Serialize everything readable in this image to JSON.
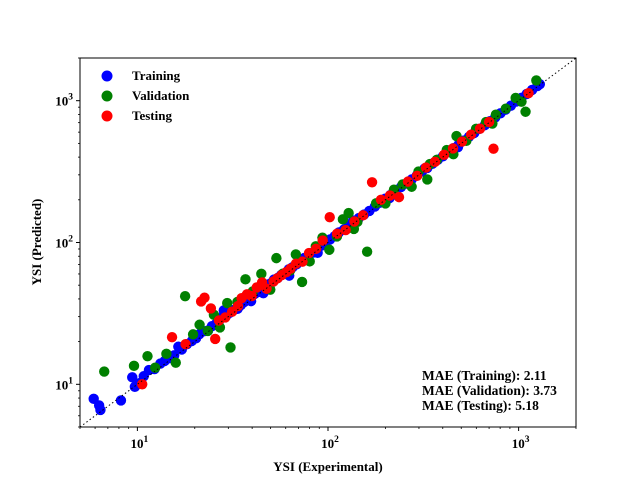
{
  "chart_data": {
    "type": "scatter",
    "xlabel": "YSI (Experimental)",
    "ylabel": "YSI (Predicted)",
    "xscale": "log",
    "yscale": "log",
    "xlim": [
      5,
      2000
    ],
    "ylim": [
      5,
      2000
    ],
    "x_ticks": [
      {
        "value": 10,
        "base": "10",
        "exp": "1"
      },
      {
        "value": 100,
        "base": "10",
        "exp": "2"
      },
      {
        "value": 1000,
        "base": "10",
        "exp": "3"
      }
    ],
    "y_ticks": [
      {
        "value": 10,
        "base": "10",
        "exp": "1"
      },
      {
        "value": 100,
        "base": "10",
        "exp": "2"
      },
      {
        "value": 1000,
        "base": "10",
        "exp": "3"
      }
    ],
    "reference_line": "y = x (dotted)",
    "grid": false,
    "legend_position": "upper-left",
    "annotations": [
      "MAE (Training): 2.11",
      "MAE (Validation): 3.73",
      "MAE (Testing): 5.18"
    ],
    "series": [
      {
        "name": "Training",
        "color": "#0000ff",
        "points": [
          [
            5.9,
            7.9
          ],
          [
            6.3,
            7.1
          ],
          [
            6.4,
            6.6
          ],
          [
            8.2,
            7.7
          ],
          [
            9.4,
            11.2
          ],
          [
            9.7,
            9.6
          ],
          [
            10.3,
            10.2
          ],
          [
            10.8,
            11.4
          ],
          [
            11.5,
            12.6
          ],
          [
            12.3,
            12.8
          ],
          [
            13.2,
            14.0
          ],
          [
            13.9,
            14.6
          ],
          [
            14.8,
            15.3
          ],
          [
            15.6,
            16.0
          ],
          [
            16.4,
            18.4
          ],
          [
            17.1,
            17.6
          ],
          [
            18.2,
            19.2
          ],
          [
            19.3,
            20.2
          ],
          [
            20.3,
            21.1
          ],
          [
            21.1,
            22.5
          ],
          [
            22.4,
            23.7
          ],
          [
            23.5,
            24.0
          ],
          [
            24.6,
            25.7
          ],
          [
            25.8,
            26.6
          ],
          [
            26.7,
            27.6
          ],
          [
            28.1,
            29.9
          ],
          [
            29.3,
            30.6
          ],
          [
            30.5,
            31.9
          ],
          [
            32.2,
            33.5
          ],
          [
            33.6,
            34.1
          ],
          [
            34.9,
            36.2
          ],
          [
            36.3,
            38.0
          ],
          [
            37.8,
            39.2
          ],
          [
            39.5,
            38.6
          ],
          [
            41.2,
            43.4
          ],
          [
            42.8,
            44.7
          ],
          [
            44.4,
            46.1
          ],
          [
            46.2,
            48.3
          ],
          [
            48.1,
            50.5
          ],
          [
            50.2,
            51.6
          ],
          [
            52.1,
            54.8
          ],
          [
            54.5,
            56.2
          ],
          [
            56.8,
            58.9
          ],
          [
            59.6,
            60.4
          ],
          [
            62.3,
            64.7
          ],
          [
            65.1,
            66.8
          ],
          [
            68.4,
            70.1
          ],
          [
            71.9,
            74.6
          ],
          [
            75.2,
            77.8
          ],
          [
            79.1,
            80.9
          ],
          [
            83.5,
            85.0
          ],
          [
            87.6,
            90.4
          ],
          [
            92.4,
            95.1
          ],
          [
            97.3,
            99.6
          ],
          [
            102.5,
            105.1
          ],
          [
            108.3,
            110.6
          ],
          [
            114.1,
            117.8
          ],
          [
            121.2,
            123.4
          ],
          [
            128.6,
            131.9
          ],
          [
            136.3,
            139.5
          ],
          [
            145.2,
            148.8
          ],
          [
            154.6,
            157.3
          ],
          [
            164.8,
            166.9
          ],
          [
            176.1,
            179.2
          ],
          [
            187.3,
            190.8
          ],
          [
            199.5,
            203.6
          ],
          [
            212.4,
            215.9
          ],
          [
            226.7,
            229.4
          ],
          [
            241.5,
            245.8
          ],
          [
            257.8,
            260.2
          ],
          [
            274.6,
            278.1
          ],
          [
            292.4,
            296.7
          ],
          [
            311.2,
            316.5
          ],
          [
            331.8,
            335.4
          ],
          [
            353.4,
            359.2
          ],
          [
            376.5,
            382.6
          ],
          [
            400.8,
            405.3
          ],
          [
            426.9,
            433.5
          ],
          [
            454.6,
            462.8
          ],
          [
            484.2,
            489.1
          ],
          [
            515.7,
            523.6
          ],
          [
            549.3,
            556.4
          ],
          [
            585.1,
            591.8
          ],
          [
            623.4,
            632.7
          ],
          [
            664.1,
            671.2
          ],
          [
            707.5,
            716.3
          ],
          [
            753.6,
            762.1
          ],
          [
            802.8,
            814.6
          ],
          [
            855.2,
            864.9
          ],
          [
            911.3,
            922.5
          ],
          [
            970.4,
            985.1
          ],
          [
            1035.8,
            1048.6
          ],
          [
            1103.2,
            1116.4
          ],
          [
            1176.4,
            1190.5
          ],
          [
            1254.3,
            1268.2
          ],
          [
            1292.1,
            1305.7
          ],
          [
            28.4,
            33.2
          ],
          [
            45.8,
            43.9
          ],
          [
            62.6,
            58.4
          ],
          [
            88.2,
            84.6
          ],
          [
            135.4,
            142.7
          ],
          [
            210.3,
            205.8
          ],
          [
            320.6,
            331.9
          ],
          [
            480.4,
            470.2
          ],
          [
            690.7,
            706.5
          ]
        ]
      },
      {
        "name": "Validation",
        "color": "#008000",
        "points": [
          [
            6.7,
            12.3
          ],
          [
            9.6,
            13.5
          ],
          [
            11.3,
            15.8
          ],
          [
            12.4,
            13.1
          ],
          [
            14.2,
            16.4
          ],
          [
            15.9,
            14.2
          ],
          [
            17.8,
            41.8
          ],
          [
            19.6,
            22.5
          ],
          [
            21.2,
            26.3
          ],
          [
            23.4,
            23.8
          ],
          [
            25.2,
            30.9
          ],
          [
            27.1,
            25.2
          ],
          [
            29.6,
            37.4
          ],
          [
            30.8,
            18.2
          ],
          [
            33.5,
            38.1
          ],
          [
            36.9,
            55.0
          ],
          [
            40.3,
            45.2
          ],
          [
            44.7,
            60.1
          ],
          [
            49.8,
            46.5
          ],
          [
            53.6,
            77.6
          ],
          [
            57.9,
            60.2
          ],
          [
            63.2,
            63.4
          ],
          [
            67.8,
            82.4
          ],
          [
            73.1,
            52.7
          ],
          [
            80.2,
            73.6
          ],
          [
            86.3,
            94.0
          ],
          [
            93.5,
            108.2
          ],
          [
            101.6,
            88.9
          ],
          [
            111.4,
            110.3
          ],
          [
            119.7,
            145.6
          ],
          [
            128.3,
            161.2
          ],
          [
            142.6,
            139.8
          ],
          [
            160.4,
            86.2
          ],
          [
            178.9,
            188.8
          ],
          [
            200.1,
            188.6
          ],
          [
            221.8,
            235.9
          ],
          [
            246.3,
            256.6
          ],
          [
            274.7,
            247.2
          ],
          [
            298.3,
            316.6
          ],
          [
            331.8,
            278.5
          ],
          [
            372.4,
            382.8
          ],
          [
            419.6,
            448.3
          ],
          [
            472.1,
            563.5
          ],
          [
            531.5,
            521.2
          ],
          [
            598.4,
            633.0
          ],
          [
            674.6,
            706.2
          ],
          [
            759.8,
            796.2
          ],
          [
            856.6,
            878.4
          ],
          [
            964.9,
            1045.1
          ],
          [
            1087.3,
            835.7
          ],
          [
            1238.6,
            1390.0
          ],
          [
            1035.5,
            984.6
          ],
          [
            728.4,
            690.1
          ],
          [
            454.7,
            419.3
          ],
          [
            342.4,
            357.6
          ],
          [
            136.7,
            124.7
          ]
        ]
      },
      {
        "name": "Testing",
        "color": "#ff0000",
        "points": [
          [
            10.6,
            10.0
          ],
          [
            15.2,
            21.5
          ],
          [
            17.9,
            19.2
          ],
          [
            21.6,
            38.4
          ],
          [
            22.5,
            40.8
          ],
          [
            24.3,
            34.3
          ],
          [
            25.6,
            20.9
          ],
          [
            26.8,
            28.2
          ],
          [
            28.9,
            29.6
          ],
          [
            31.4,
            32.5
          ],
          [
            33.7,
            35.6
          ],
          [
            35.2,
            40.5
          ],
          [
            37.6,
            43.1
          ],
          [
            39.8,
            41.9
          ],
          [
            42.3,
            48.2
          ],
          [
            45.1,
            52.3
          ],
          [
            47.6,
            47.2
          ],
          [
            51.8,
            53.1
          ],
          [
            54.3,
            55.9
          ],
          [
            57.2,
            58.9
          ],
          [
            60.4,
            61.8
          ],
          [
            63.6,
            65.4
          ],
          [
            67.9,
            70.9
          ],
          [
            73.5,
            73.3
          ],
          [
            79.5,
            84.2
          ],
          [
            86.6,
            90.2
          ],
          [
            93.8,
            103.2
          ],
          [
            102.1,
            150.8
          ],
          [
            111.6,
            115.3
          ],
          [
            123.8,
            122.4
          ],
          [
            137.5,
            140.6
          ],
          [
            152.7,
            155.4
          ],
          [
            170.3,
            265.8
          ],
          [
            189.6,
            200.1
          ],
          [
            211.4,
            214.3
          ],
          [
            235.8,
            208.9
          ],
          [
            262.7,
            268.7
          ],
          [
            293.4,
            295.2
          ],
          [
            326.6,
            337.4
          ],
          [
            364.2,
            370.6
          ],
          [
            406.5,
            415.5
          ],
          [
            452.7,
            460.8
          ],
          [
            504.6,
            515.3
          ],
          [
            563.1,
            576.2
          ],
          [
            627.6,
            634.4
          ],
          [
            700.4,
            708.1
          ],
          [
            738.2,
            458.9
          ],
          [
            1126.6,
            1130.3
          ]
        ]
      }
    ]
  }
}
